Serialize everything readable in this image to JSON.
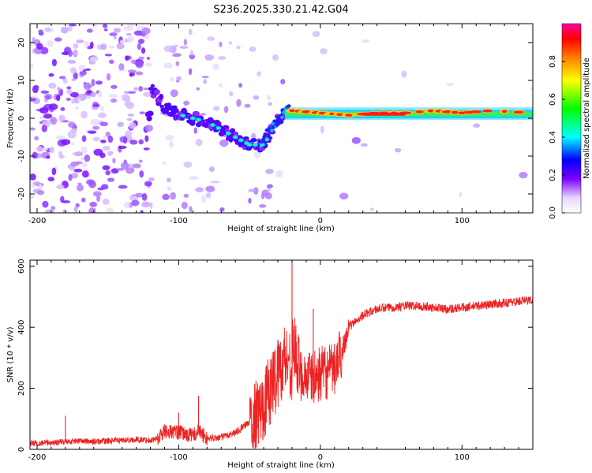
{
  "title": "S236.2025.330.21.42.G04",
  "chart_data": [
    {
      "type": "heatmap",
      "name": "spectrogram",
      "xlabel": "Height of straight line (km)",
      "ylabel": "Frequency (Hz)",
      "xlim": [
        -205,
        150
      ],
      "ylim": [
        -25,
        25
      ],
      "x_ticks": [
        -200,
        -100,
        0,
        100
      ],
      "y_ticks": [
        -20,
        -10,
        0,
        10,
        20
      ],
      "colorbar": {
        "label": "Normalized spectral amplitude",
        "range": [
          0,
          1
        ],
        "ticks": [
          0.0,
          0.2,
          0.4,
          0.6,
          0.8
        ]
      },
      "ridge": [
        {
          "x": -120,
          "y": 8
        },
        {
          "x": -110,
          "y": 3
        },
        {
          "x": -100,
          "y": 1
        },
        {
          "x": -90,
          "y": 0
        },
        {
          "x": -80,
          "y": -1
        },
        {
          "x": -70,
          "y": -3
        },
        {
          "x": -60,
          "y": -5
        },
        {
          "x": -50,
          "y": -7
        },
        {
          "x": -40,
          "y": -7
        },
        {
          "x": -30,
          "y": 0
        },
        {
          "x": -20,
          "y": 2
        },
        {
          "x": 0,
          "y": 1
        },
        {
          "x": 20,
          "y": 0
        },
        {
          "x": 40,
          "y": 1
        },
        {
          "x": 60,
          "y": 1
        },
        {
          "x": 80,
          "y": 2
        },
        {
          "x": 100,
          "y": 1
        },
        {
          "x": 120,
          "y": 2
        },
        {
          "x": 150,
          "y": 1
        }
      ]
    },
    {
      "type": "line",
      "name": "snr",
      "xlabel": "Height of straight line (km)",
      "ylabel": "SNR (10 * v/v)",
      "xlim": [
        -205,
        150
      ],
      "ylim": [
        0,
        620
      ],
      "x_ticks": [
        -200,
        -100,
        0,
        100
      ],
      "y_ticks": [
        0,
        200,
        400,
        600
      ],
      "series": [
        {
          "name": "SNR",
          "color": "#ee2222",
          "x": [
            -205,
            -190,
            -180,
            -170,
            -160,
            -150,
            -140,
            -130,
            -120,
            -115,
            -110,
            -100,
            -90,
            -86,
            -80,
            -70,
            -60,
            -50,
            -45,
            -40,
            -35,
            -30,
            -25,
            -20,
            -19,
            -15,
            -10,
            -5,
            0,
            5,
            10,
            15,
            20,
            25,
            30,
            40,
            50,
            60,
            70,
            80,
            90,
            100,
            110,
            120,
            130,
            140,
            150
          ],
          "y": [
            20,
            22,
            25,
            28,
            25,
            28,
            30,
            32,
            30,
            35,
            60,
            55,
            45,
            60,
            35,
            40,
            55,
            90,
            110,
            150,
            200,
            250,
            300,
            280,
            350,
            250,
            240,
            230,
            250,
            250,
            260,
            320,
            400,
            420,
            440,
            460,
            465,
            470,
            470,
            465,
            460,
            465,
            470,
            475,
            480,
            485,
            490
          ],
          "spikes": [
            {
              "x": -180,
              "y": 110
            },
            {
              "x": -100,
              "y": 120
            },
            {
              "x": -86,
              "y": 175
            },
            {
              "x": -30,
              "y": 360
            },
            {
              "x": -20,
              "y": 620
            },
            {
              "x": -5,
              "y": 460
            }
          ]
        }
      ]
    }
  ]
}
